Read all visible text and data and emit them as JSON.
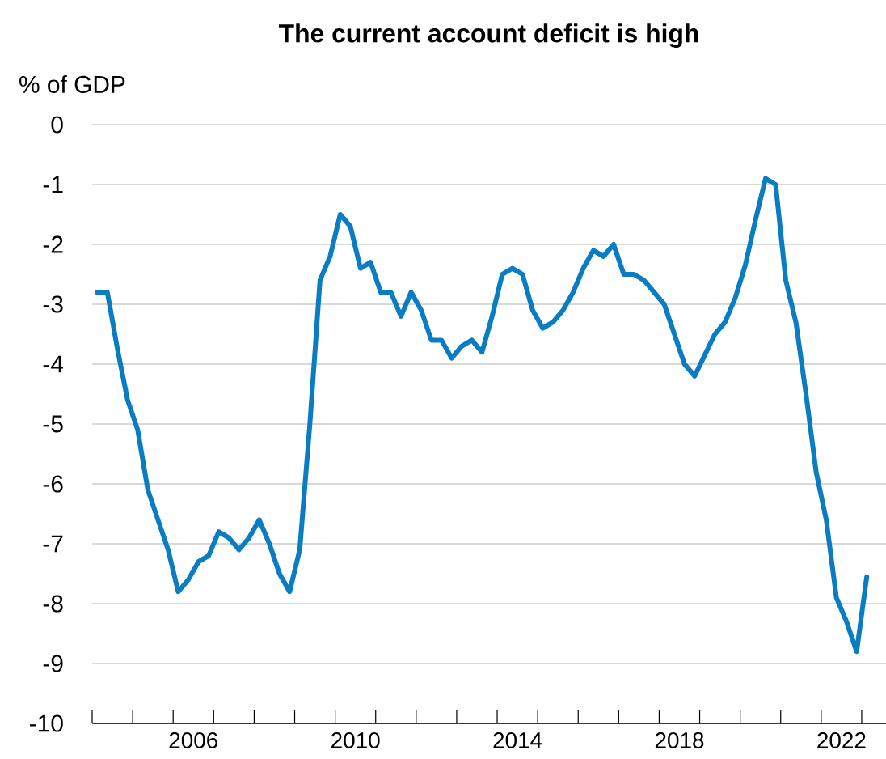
{
  "chart_data": {
    "type": "line",
    "title": "The current account deficit is high",
    "ylabel": "% of GDP",
    "x": [
      2004.125,
      2004.375,
      2004.625,
      2004.875,
      2005.125,
      2005.375,
      2005.625,
      2005.875,
      2006.125,
      2006.375,
      2006.625,
      2006.875,
      2007.125,
      2007.375,
      2007.625,
      2007.875,
      2008.125,
      2008.375,
      2008.625,
      2008.875,
      2009.125,
      2009.375,
      2009.625,
      2009.875,
      2010.125,
      2010.375,
      2010.625,
      2010.875,
      2011.125,
      2011.375,
      2011.625,
      2011.875,
      2012.125,
      2012.375,
      2012.625,
      2012.875,
      2013.125,
      2013.375,
      2013.625,
      2013.875,
      2014.125,
      2014.375,
      2014.625,
      2014.875,
      2015.125,
      2015.375,
      2015.625,
      2015.875,
      2016.125,
      2016.375,
      2016.625,
      2016.875,
      2017.125,
      2017.375,
      2017.625,
      2017.875,
      2018.125,
      2018.375,
      2018.625,
      2018.875,
      2019.125,
      2019.375,
      2019.625,
      2019.875,
      2020.125,
      2020.375,
      2020.625,
      2020.875,
      2021.125,
      2021.375,
      2021.625,
      2021.875,
      2022.125,
      2022.375,
      2022.625,
      2022.875,
      2023.125
    ],
    "series": [
      {
        "color": "#0a7cc1",
        "values": [
          -2.8,
          -2.8,
          -3.75,
          -4.6,
          -5.1,
          -6.1,
          -6.6,
          -7.1,
          -7.8,
          -7.6,
          -7.3,
          -7.2,
          -6.8,
          -6.9,
          -7.1,
          -6.9,
          -6.6,
          -7.0,
          -7.5,
          -7.8,
          -7.1,
          -5.0,
          -2.6,
          -2.2,
          -1.5,
          -1.7,
          -2.4,
          -2.3,
          -2.8,
          -2.8,
          -3.2,
          -2.8,
          -3.1,
          -3.6,
          -3.6,
          -3.9,
          -3.7,
          -3.6,
          -3.8,
          -3.2,
          -2.5,
          -2.4,
          -2.5,
          -3.1,
          -3.4,
          -3.3,
          -3.1,
          -2.8,
          -2.4,
          -2.1,
          -2.2,
          -2.0,
          -2.5,
          -2.5,
          -2.6,
          -2.8,
          -3.0,
          -3.5,
          -4.0,
          -4.2,
          -3.85,
          -3.5,
          -3.3,
          -2.9,
          -2.35,
          -1.6,
          -0.9,
          -1.0,
          -2.6,
          -3.3,
          -4.5,
          -5.8,
          -6.6,
          -7.9,
          -8.3,
          -8.8,
          -7.55
        ]
      }
    ],
    "xlim": [
      2004,
      2023.6
    ],
    "xticks": [
      {
        "value": 2004,
        "label": null
      },
      {
        "value": 2005,
        "label": null
      },
      {
        "value": 2006,
        "label": null
      },
      {
        "value": 2006.5,
        "label": "2006"
      },
      {
        "value": 2007,
        "label": null
      },
      {
        "value": 2008,
        "label": null
      },
      {
        "value": 2009,
        "label": null
      },
      {
        "value": 2010,
        "label": null
      },
      {
        "value": 2010.5,
        "label": "2010"
      },
      {
        "value": 2011,
        "label": null
      },
      {
        "value": 2012,
        "label": null
      },
      {
        "value": 2013,
        "label": null
      },
      {
        "value": 2014,
        "label": null
      },
      {
        "value": 2014.5,
        "label": "2014"
      },
      {
        "value": 2015,
        "label": null
      },
      {
        "value": 2016,
        "label": null
      },
      {
        "value": 2017,
        "label": null
      },
      {
        "value": 2018,
        "label": null
      },
      {
        "value": 2018.5,
        "label": "2018"
      },
      {
        "value": 2019,
        "label": null
      },
      {
        "value": 2020,
        "label": null
      },
      {
        "value": 2021,
        "label": null
      },
      {
        "value": 2022,
        "label": null
      },
      {
        "value": 2022.5,
        "label": "2022"
      },
      {
        "value": 2023,
        "label": null
      }
    ],
    "ylim": [
      -10,
      0
    ],
    "yticks": [
      0,
      -1,
      -2,
      -3,
      -4,
      -5,
      -6,
      -7,
      -8,
      -9,
      -10
    ],
    "grid": "y",
    "marker": "none",
    "line_style": "solid"
  }
}
